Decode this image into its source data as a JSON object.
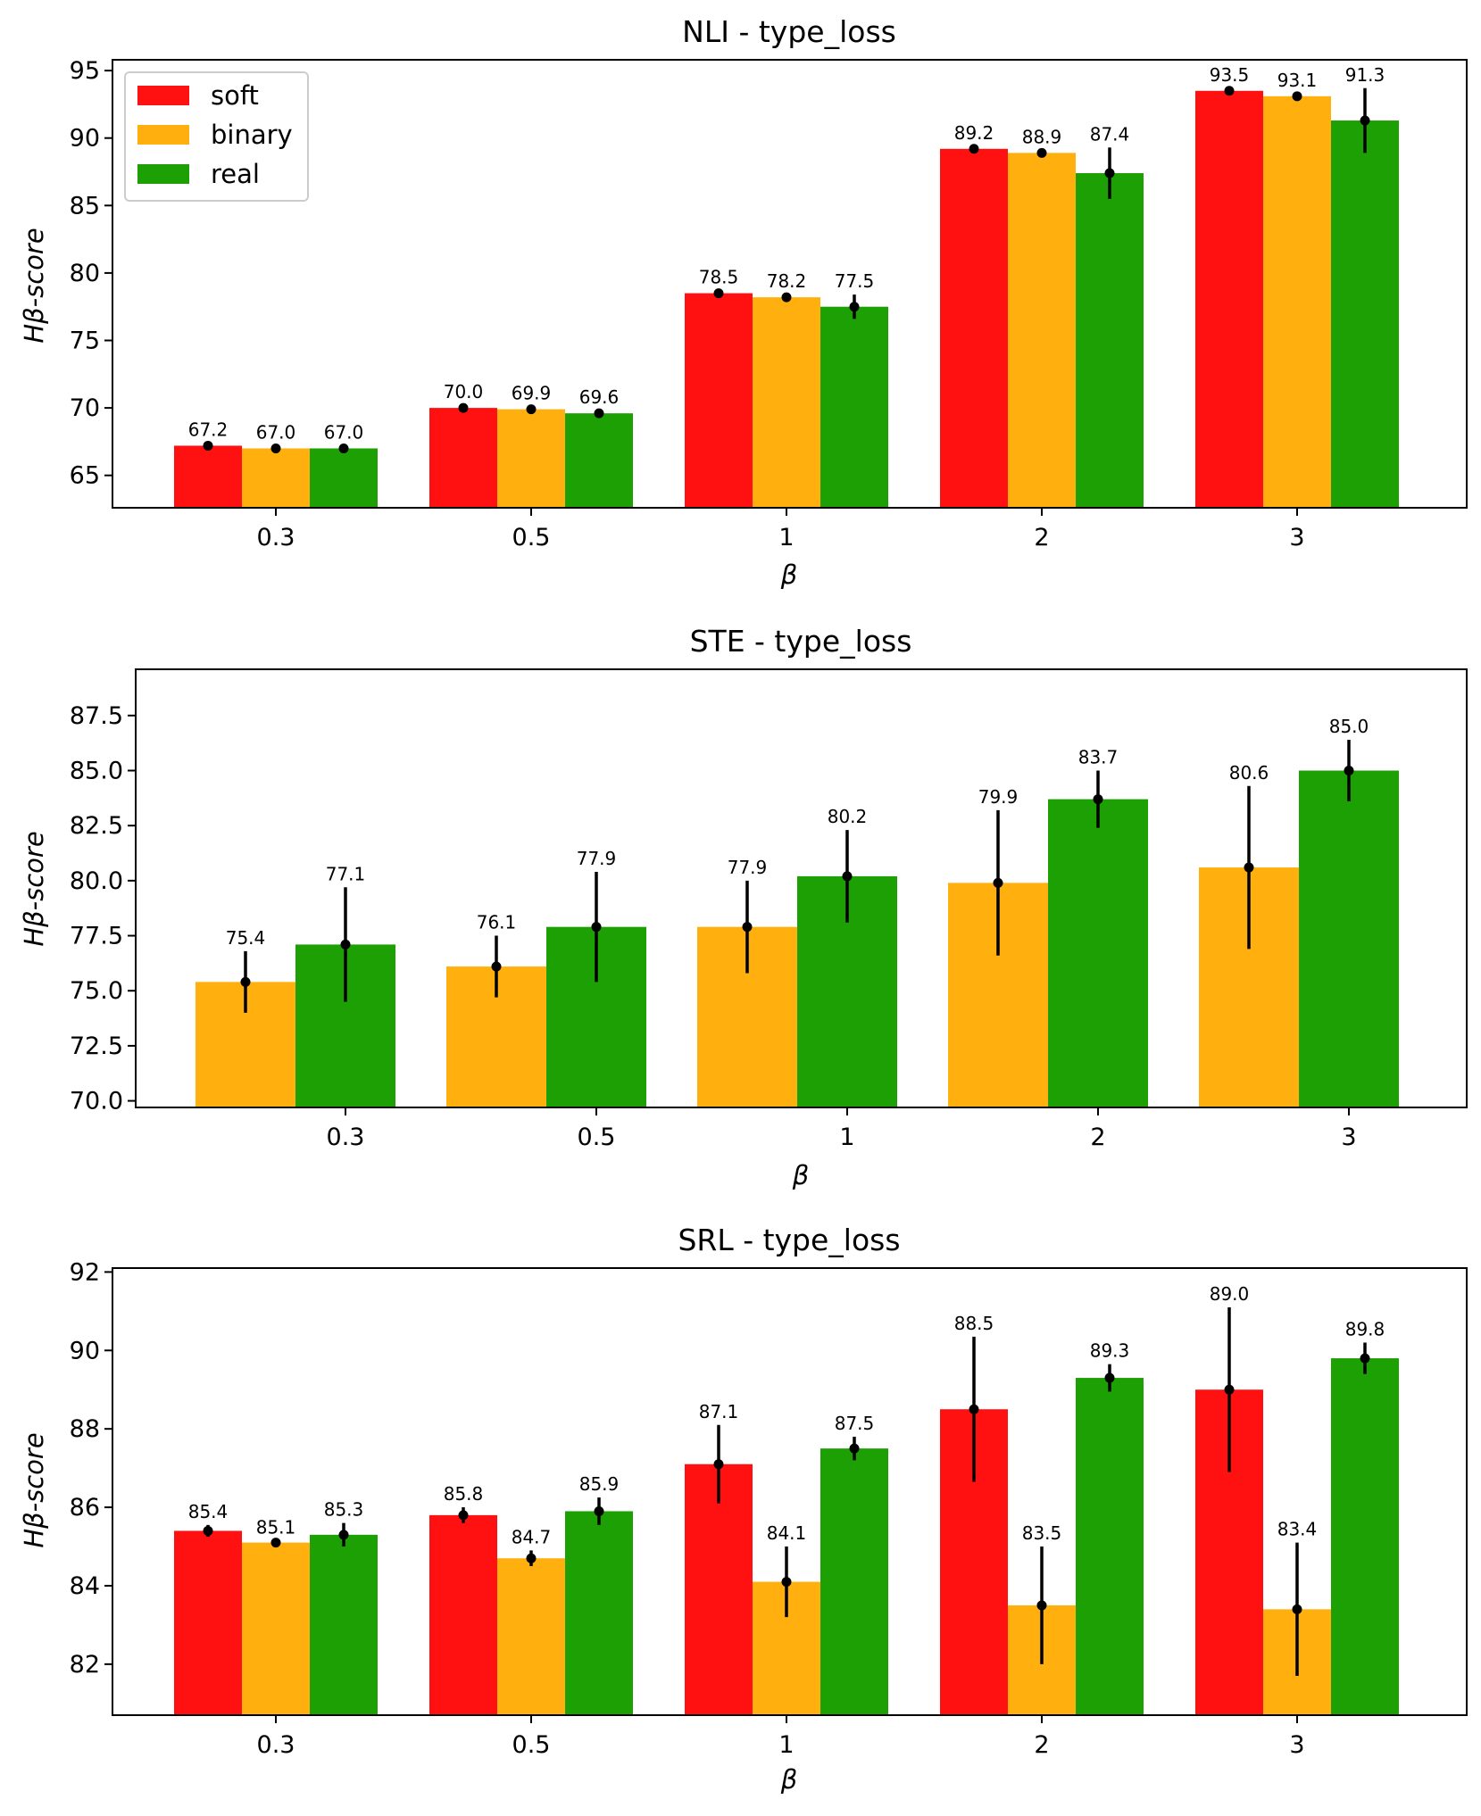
{
  "chart_data": [
    {
      "type": "bar",
      "title": "NLI - type_loss",
      "xlabel": "β",
      "ylabel": "Hβ-score",
      "categories": [
        "0.3",
        "0.5",
        "1",
        "2",
        "3"
      ],
      "ylim": [
        62.6,
        95.8
      ],
      "yticks": [
        65,
        70,
        75,
        80,
        85,
        90,
        95
      ],
      "ytick_labels": [
        "65",
        "70",
        "75",
        "80",
        "85",
        "90",
        "95"
      ],
      "legend": {
        "position": "top-left",
        "entries": [
          "soft",
          "binary",
          "real"
        ]
      },
      "series": [
        {
          "name": "soft",
          "color": "#ff1111",
          "values": [
            67.2,
            70.0,
            78.5,
            89.2,
            93.5
          ],
          "labels": [
            "67.2",
            "70.0",
            "78.5",
            "89.2",
            "93.5"
          ],
          "errors": [
            0.2,
            0.2,
            0.2,
            0.2,
            0.2
          ]
        },
        {
          "name": "binary",
          "color": "#ffb00f",
          "values": [
            67.0,
            69.9,
            78.2,
            88.9,
            93.1
          ],
          "labels": [
            "67.0",
            "69.9",
            "78.2",
            "88.9",
            "93.1"
          ],
          "errors": [
            0.2,
            0.2,
            0.2,
            0.2,
            0.2
          ]
        },
        {
          "name": "real",
          "color": "#1da004",
          "values": [
            67.0,
            69.6,
            77.5,
            87.4,
            91.3
          ],
          "labels": [
            "67.0",
            "69.6",
            "77.5",
            "87.4",
            "91.3"
          ],
          "errors": [
            0.2,
            0.2,
            0.9,
            1.9,
            2.4
          ]
        }
      ]
    },
    {
      "type": "bar",
      "title": "STE - type_loss",
      "xlabel": "β",
      "ylabel": "Hβ-score",
      "categories": [
        "0.3",
        "0.5",
        "1",
        "2",
        "3"
      ],
      "ylim": [
        69.7,
        89.6
      ],
      "yticks": [
        70.0,
        72.5,
        75.0,
        77.5,
        80.0,
        82.5,
        85.0,
        87.5
      ],
      "ytick_labels": [
        "70.0",
        "72.5",
        "75.0",
        "77.5",
        "80.0",
        "82.5",
        "85.0",
        "87.5"
      ],
      "series": [
        {
          "name": "binary",
          "color": "#ffb00f",
          "values": [
            75.4,
            76.1,
            77.9,
            79.9,
            80.6
          ],
          "labels": [
            "75.4",
            "76.1",
            "77.9",
            "79.9",
            "80.6"
          ],
          "errors": [
            1.4,
            1.4,
            2.1,
            3.3,
            3.7
          ]
        },
        {
          "name": "real",
          "color": "#1da004",
          "values": [
            77.1,
            77.9,
            80.2,
            83.7,
            85.0
          ],
          "labels": [
            "77.1",
            "77.9",
            "80.2",
            "83.7",
            "85.0"
          ],
          "errors": [
            2.6,
            2.5,
            2.1,
            1.3,
            1.4
          ]
        }
      ]
    },
    {
      "type": "bar",
      "title": "SRL - type_loss",
      "xlabel": "β",
      "ylabel": "Hβ-score",
      "categories": [
        "0.3",
        "0.5",
        "1",
        "2",
        "3"
      ],
      "ylim": [
        80.7,
        92.1
      ],
      "yticks": [
        82,
        84,
        86,
        88,
        90,
        92
      ],
      "ytick_labels": [
        "82",
        "84",
        "86",
        "88",
        "90",
        "92"
      ],
      "series": [
        {
          "name": "soft",
          "color": "#ff1111",
          "values": [
            85.4,
            85.8,
            87.1,
            88.5,
            89.0
          ],
          "labels": [
            "85.4",
            "85.8",
            "87.1",
            "88.5",
            "89.0"
          ],
          "errors": [
            0.15,
            0.2,
            1.0,
            1.85,
            2.1
          ]
        },
        {
          "name": "binary",
          "color": "#ffb00f",
          "values": [
            85.1,
            84.7,
            84.1,
            83.5,
            83.4
          ],
          "labels": [
            "85.1",
            "84.7",
            "84.1",
            "83.5",
            "83.4"
          ],
          "errors": [
            0.05,
            0.2,
            0.9,
            1.5,
            1.7
          ]
        },
        {
          "name": "real",
          "color": "#1da004",
          "values": [
            85.3,
            85.9,
            87.5,
            89.3,
            89.8
          ],
          "labels": [
            "85.3",
            "85.9",
            "87.5",
            "89.3",
            "89.8"
          ],
          "errors": [
            0.3,
            0.35,
            0.3,
            0.35,
            0.4
          ]
        }
      ]
    }
  ]
}
